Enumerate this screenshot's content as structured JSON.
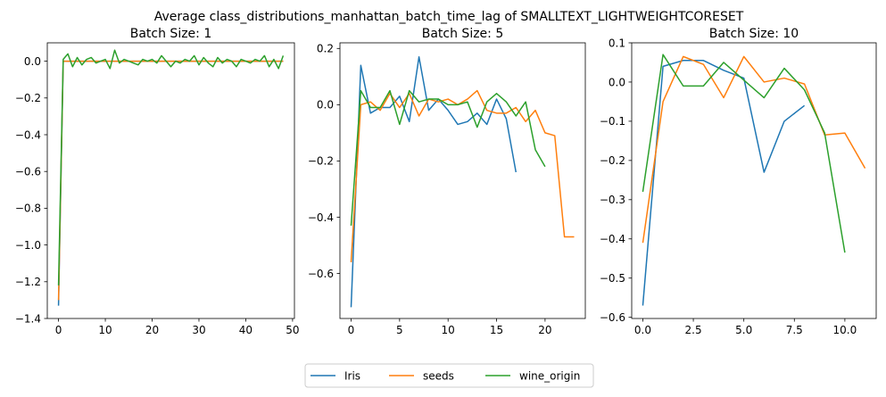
{
  "figure": {
    "suptitle": "Average class_distributions_manhattan_batch_time_lag of SMALLTEXT_LIGHTWEIGHTCORESET"
  },
  "colors": {
    "Iris": "#1f77b4",
    "seeds": "#ff7f0e",
    "wine_origin": "#2ca02c"
  },
  "legend": {
    "placement": "bottom-center",
    "entries": [
      "Iris",
      "seeds",
      "wine_origin"
    ]
  },
  "chart_data": [
    {
      "type": "line",
      "title": "Batch Size: 1",
      "xlim": [
        -2.4,
        50.4
      ],
      "ylim": [
        -1.4,
        0.1
      ],
      "xticks": [
        0,
        10,
        20,
        30,
        40,
        50
      ],
      "xtick_labels": [
        "0",
        "10",
        "20",
        "30",
        "40",
        "50"
      ],
      "yticks": [
        0.0,
        -0.2,
        -0.4,
        -0.6,
        -0.8,
        -1.0,
        -1.2,
        -1.4
      ],
      "ytick_labels": [
        "0.0",
        "−0.2",
        "−0.4",
        "−0.6",
        "−0.8",
        "−1.0",
        "−1.2",
        "−1.4"
      ],
      "series": [
        {
          "name": "Iris",
          "x": [
            0,
            1,
            2,
            3,
            4,
            5,
            6,
            7,
            8,
            9,
            10,
            11,
            12,
            13,
            14,
            15,
            16,
            17,
            18,
            19,
            20,
            21,
            22,
            23,
            24,
            25,
            26,
            27,
            28,
            29,
            30,
            31,
            32,
            33,
            34,
            35,
            36,
            37,
            38,
            39,
            40,
            41,
            42,
            43,
            44,
            45,
            46,
            47,
            48
          ],
          "y": [
            -1.33,
            0.0,
            0.0,
            0.0,
            0.0,
            0.0,
            0.0,
            0.0,
            0.0,
            0.0,
            0.0,
            0.0,
            0.0,
            0.0,
            0.0,
            0.0,
            0.0,
            0.0,
            0.0,
            0.0,
            0.0,
            0.0,
            0.0,
            0.0,
            0.0,
            0.0,
            0.0,
            0.0,
            0.0,
            0.0,
            0.0,
            0.0,
            0.0,
            0.0,
            0.0,
            0.0,
            0.0,
            0.0,
            0.0,
            0.0,
            0.0,
            0.0,
            0.0,
            0.0,
            0.0,
            0.0,
            0.0,
            0.0,
            0.0
          ]
        },
        {
          "name": "seeds",
          "x": [
            0,
            1,
            2,
            3,
            4,
            5,
            6,
            7,
            8,
            9,
            10,
            11,
            12,
            13,
            14,
            15,
            16,
            17,
            18,
            19,
            20,
            21,
            22,
            23,
            24,
            25,
            26,
            27,
            28,
            29,
            30,
            31,
            32,
            33,
            34,
            35,
            36,
            37,
            38,
            39,
            40,
            41,
            42,
            43,
            44,
            45,
            46,
            47,
            48
          ],
          "y": [
            -1.3,
            0.0,
            0.0,
            0.0,
            0.0,
            0.0,
            0.0,
            0.0,
            0.0,
            0.0,
            0.0,
            0.0,
            0.0,
            0.0,
            0.0,
            0.0,
            0.0,
            0.0,
            0.0,
            0.0,
            0.0,
            0.0,
            0.0,
            0.0,
            0.0,
            0.0,
            0.0,
            0.0,
            0.0,
            0.0,
            0.0,
            0.0,
            0.0,
            0.0,
            0.0,
            0.0,
            0.0,
            0.0,
            0.0,
            0.0,
            0.0,
            0.0,
            0.0,
            0.0,
            0.0,
            0.0,
            0.0,
            0.0,
            0.0
          ]
        },
        {
          "name": "wine_origin",
          "x": [
            0,
            1,
            2,
            3,
            4,
            5,
            6,
            7,
            8,
            9,
            10,
            11,
            12,
            13,
            14,
            15,
            16,
            17,
            18,
            19,
            20,
            21,
            22,
            23,
            24,
            25,
            26,
            27,
            28,
            29,
            30,
            31,
            32,
            33,
            34,
            35,
            36,
            37,
            38,
            39,
            40,
            41,
            42,
            43,
            44,
            45,
            46,
            47,
            48
          ],
          "y": [
            -1.22,
            0.01,
            0.04,
            -0.03,
            0.02,
            -0.02,
            0.01,
            0.02,
            -0.01,
            0.0,
            0.01,
            -0.04,
            0.06,
            -0.01,
            0.01,
            0.0,
            -0.01,
            -0.02,
            0.01,
            0.0,
            0.01,
            -0.01,
            0.03,
            0.0,
            -0.03,
            0.0,
            -0.01,
            0.01,
            0.0,
            0.03,
            -0.02,
            0.02,
            -0.01,
            -0.03,
            0.02,
            -0.01,
            0.01,
            0.0,
            -0.03,
            0.01,
            0.0,
            -0.01,
            0.01,
            0.0,
            0.03,
            -0.03,
            0.01,
            -0.04,
            0.03
          ]
        }
      ]
    },
    {
      "type": "line",
      "title": "Batch Size: 5",
      "xlim": [
        -1.15,
        24.15
      ],
      "ylim": [
        -0.76,
        0.22
      ],
      "xticks": [
        0,
        5,
        10,
        15,
        20
      ],
      "xtick_labels": [
        "0",
        "5",
        "10",
        "15",
        "20"
      ],
      "yticks": [
        0.2,
        0.0,
        -0.2,
        -0.4,
        -0.6
      ],
      "ytick_labels": [
        "0.2",
        "0.0",
        "−0.2",
        "−0.4",
        "−0.6"
      ],
      "series": [
        {
          "name": "Iris",
          "x": [
            0,
            1,
            2,
            3,
            4,
            5,
            6,
            7,
            8,
            9,
            10,
            11,
            12,
            13,
            14,
            15,
            16,
            17
          ],
          "y": [
            -0.72,
            0.14,
            -0.03,
            -0.01,
            -0.01,
            0.03,
            -0.06,
            0.17,
            -0.02,
            0.02,
            -0.02,
            -0.07,
            -0.06,
            -0.03,
            -0.07,
            0.02,
            -0.05,
            -0.24
          ]
        },
        {
          "name": "seeds",
          "x": [
            0,
            1,
            2,
            3,
            4,
            5,
            6,
            7,
            8,
            9,
            10,
            11,
            12,
            13,
            14,
            15,
            16,
            17,
            18,
            19,
            20,
            21,
            22,
            23
          ],
          "y": [
            -0.56,
            0.0,
            0.01,
            -0.02,
            0.04,
            -0.01,
            0.04,
            -0.04,
            0.02,
            0.01,
            0.02,
            0.0,
            0.02,
            0.05,
            -0.02,
            -0.03,
            -0.03,
            -0.01,
            -0.06,
            -0.02,
            -0.1,
            -0.11,
            -0.47,
            -0.47
          ]
        },
        {
          "name": "wine_origin",
          "x": [
            0,
            1,
            2,
            3,
            4,
            5,
            6,
            7,
            8,
            9,
            10,
            11,
            12,
            13,
            14,
            15,
            16,
            17,
            18,
            19,
            20
          ],
          "y": [
            -0.43,
            0.05,
            -0.01,
            -0.01,
            0.05,
            -0.07,
            0.05,
            0.01,
            0.02,
            0.02,
            0.0,
            0.0,
            0.01,
            -0.08,
            0.01,
            0.04,
            0.01,
            -0.04,
            0.01,
            -0.16,
            -0.22
          ]
        }
      ]
    },
    {
      "type": "line",
      "title": "Batch Size: 10",
      "xlim": [
        -0.55,
        11.55
      ],
      "ylim": [
        -0.603,
        0.1
      ],
      "xticks": [
        0.0,
        2.5,
        5.0,
        7.5,
        10.0
      ],
      "xtick_labels": [
        "0.0",
        "2.5",
        "5.0",
        "7.5",
        "10.0"
      ],
      "yticks": [
        0.1,
        0.0,
        -0.1,
        -0.2,
        -0.3,
        -0.4,
        -0.5,
        -0.6
      ],
      "ytick_labels": [
        "0.1",
        "0.0",
        "−0.1",
        "−0.2",
        "−0.3",
        "−0.4",
        "−0.5",
        "−0.6"
      ],
      "series": [
        {
          "name": "Iris",
          "x": [
            0,
            1,
            2,
            3,
            4,
            5,
            6,
            7,
            8
          ],
          "y": [
            -0.57,
            0.04,
            0.055,
            0.055,
            0.03,
            0.01,
            -0.23,
            -0.1,
            -0.06
          ]
        },
        {
          "name": "seeds",
          "x": [
            0,
            1,
            2,
            3,
            4,
            5,
            6,
            7,
            8,
            9,
            10,
            11
          ],
          "y": [
            -0.41,
            -0.05,
            0.065,
            0.045,
            -0.04,
            0.065,
            0.0,
            0.01,
            -0.005,
            -0.135,
            -0.13,
            -0.22
          ]
        },
        {
          "name": "wine_origin",
          "x": [
            0,
            1,
            2,
            3,
            4,
            5,
            6,
            7,
            8,
            9,
            10
          ],
          "y": [
            -0.28,
            0.07,
            -0.01,
            -0.01,
            0.05,
            0.005,
            -0.04,
            0.035,
            -0.02,
            -0.13,
            -0.435
          ]
        }
      ]
    }
  ]
}
